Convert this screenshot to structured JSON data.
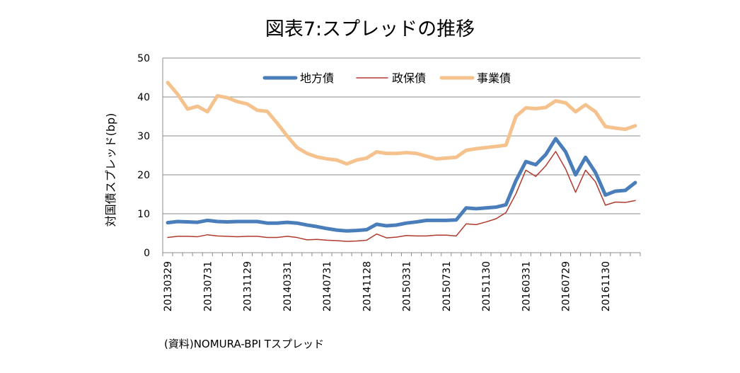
{
  "chart_data": {
    "type": "line",
    "title": "図表7:スプレッドの推移",
    "ylabel": "対国債スプレッド(bp)",
    "xlabel": "",
    "ylim": [
      0,
      50
    ],
    "yticks": [
      0,
      10,
      20,
      30,
      40,
      50
    ],
    "grid": true,
    "legend_position": "top",
    "source": "(資料)NOMURA-BPI Tスプレッド",
    "x_tick_labels": [
      "20130329",
      "20130731",
      "20131129",
      "20140331",
      "20140731",
      "20141128",
      "20150331",
      "20150731",
      "20151130",
      "20160331",
      "20160729",
      "20161130"
    ],
    "x_tick_indices": [
      0,
      4,
      8,
      12,
      16,
      20,
      24,
      28,
      32,
      36,
      40,
      44
    ],
    "n_points": 48,
    "series": [
      {
        "name": "地方債",
        "color": "#4a7ebb",
        "width": "thick",
        "values": [
          7.7,
          8.0,
          7.9,
          7.8,
          8.3,
          8.0,
          7.9,
          8.0,
          8.0,
          8.0,
          7.6,
          7.6,
          7.8,
          7.6,
          7.1,
          6.7,
          6.2,
          5.8,
          5.6,
          5.7,
          5.9,
          7.3,
          6.9,
          7.1,
          7.6,
          7.9,
          8.3,
          8.3,
          8.3,
          8.4,
          11.5,
          11.3,
          11.5,
          11.7,
          12.3,
          18.5,
          23.4,
          22.6,
          25.2,
          29.3,
          25.9,
          20.0,
          24.5,
          20.6,
          14.8,
          15.8,
          16.0,
          18.0
        ]
      },
      {
        "name": "政保債",
        "color": "#b03a2e",
        "width": "thin",
        "values": [
          3.9,
          4.2,
          4.2,
          4.1,
          4.6,
          4.3,
          4.2,
          4.1,
          4.2,
          4.2,
          3.9,
          3.9,
          4.2,
          3.9,
          3.3,
          3.4,
          3.2,
          3.1,
          2.9,
          3.0,
          3.2,
          4.8,
          3.8,
          4.0,
          4.4,
          4.3,
          4.3,
          4.5,
          4.5,
          4.3,
          7.4,
          7.2,
          7.9,
          8.7,
          10.3,
          15.1,
          21.2,
          19.6,
          22.3,
          26.0,
          21.5,
          15.5,
          21.2,
          18.2,
          12.2,
          13.0,
          12.9,
          13.4
        ]
      },
      {
        "name": "事業債",
        "color": "#f5c28d",
        "width": "thick",
        "values": [
          43.7,
          40.7,
          36.9,
          37.6,
          36.2,
          40.3,
          39.8,
          38.8,
          38.2,
          36.6,
          36.3,
          33.3,
          30.0,
          27.0,
          25.5,
          24.6,
          24.1,
          23.8,
          22.8,
          23.8,
          24.3,
          25.9,
          25.5,
          25.5,
          25.7,
          25.5,
          24.8,
          24.1,
          24.3,
          24.5,
          26.3,
          26.7,
          27.0,
          27.3,
          27.6,
          35.0,
          37.2,
          37.0,
          37.3,
          39.0,
          38.5,
          36.2,
          38.0,
          36.2,
          32.4,
          32.0,
          31.7,
          32.6
        ]
      }
    ]
  }
}
